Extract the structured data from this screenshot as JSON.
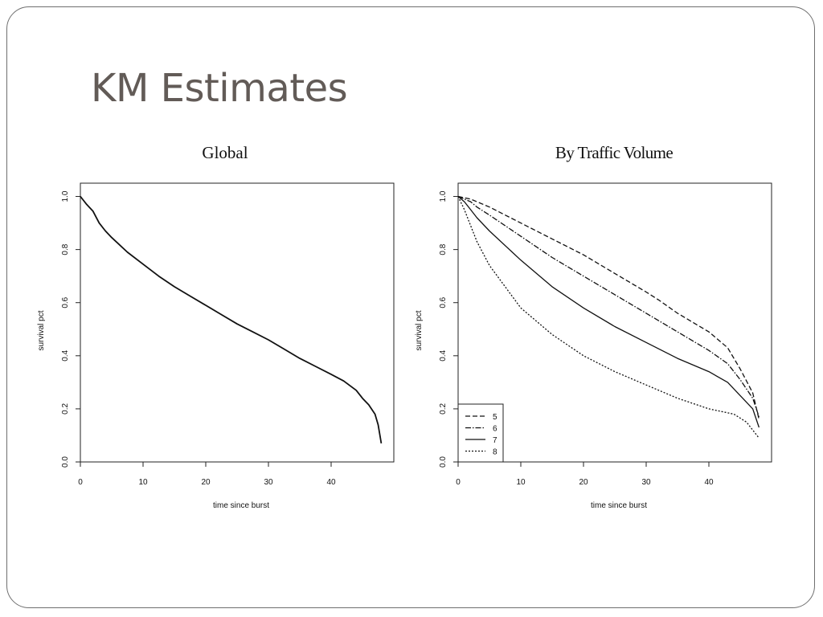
{
  "slide": {
    "title": "KM Estimates",
    "captions": [
      "Global",
      "By Traffic Volume"
    ]
  },
  "chart_data": [
    {
      "type": "line",
      "title": "Global",
      "xlabel": "time since burst",
      "ylabel": "survival pct",
      "xlim": [
        0,
        50
      ],
      "ylim": [
        0,
        1.05
      ],
      "xticks": [
        0,
        10,
        20,
        30,
        40
      ],
      "yticks": [
        0.0,
        0.2,
        0.4,
        0.6,
        0.8,
        1.0
      ],
      "grid": false,
      "series": [
        {
          "x": [
            0,
            1,
            2,
            3,
            4,
            5,
            7.5,
            10,
            12.5,
            15,
            17.5,
            20,
            22.5,
            25,
            27.5,
            30,
            32.5,
            35,
            37.5,
            40,
            42,
            44,
            45,
            46,
            47,
            47.5,
            48
          ],
          "y": [
            1.0,
            0.97,
            0.945,
            0.9,
            0.87,
            0.845,
            0.79,
            0.745,
            0.7,
            0.66,
            0.625,
            0.59,
            0.555,
            0.52,
            0.49,
            0.46,
            0.425,
            0.39,
            0.36,
            0.33,
            0.305,
            0.27,
            0.24,
            0.215,
            0.18,
            0.14,
            0.07
          ],
          "style": "solid"
        }
      ]
    },
    {
      "type": "line",
      "title": "By Traffic Volume",
      "xlabel": "time since burst",
      "ylabel": "survival pct",
      "xlim": [
        0,
        50
      ],
      "ylim": [
        0,
        1.05
      ],
      "xticks": [
        0,
        10,
        20,
        30,
        40
      ],
      "yticks": [
        0.0,
        0.2,
        0.4,
        0.6,
        0.8,
        1.0
      ],
      "grid": false,
      "legend_position": "bottom-left",
      "series": [
        {
          "name": "5",
          "style": "dashed",
          "x": [
            0,
            1,
            2,
            3,
            5,
            10,
            15,
            20,
            25,
            30,
            32,
            35,
            40,
            43,
            45,
            47,
            48
          ],
          "y": [
            1.0,
            0.995,
            0.99,
            0.98,
            0.96,
            0.9,
            0.84,
            0.78,
            0.71,
            0.64,
            0.61,
            0.56,
            0.49,
            0.43,
            0.35,
            0.26,
            0.16
          ]
        },
        {
          "name": "6",
          "style": "dashdot",
          "x": [
            0,
            1,
            2,
            3,
            5,
            10,
            15,
            20,
            25,
            30,
            35,
            40,
            43,
            45,
            47,
            48
          ],
          "y": [
            1.0,
            0.99,
            0.98,
            0.96,
            0.93,
            0.85,
            0.77,
            0.7,
            0.63,
            0.56,
            0.49,
            0.42,
            0.37,
            0.31,
            0.24,
            0.17
          ]
        },
        {
          "name": "7",
          "style": "solid",
          "x": [
            0,
            1,
            2,
            3,
            5,
            10,
            15,
            20,
            25,
            30,
            35,
            40,
            43,
            45,
            47,
            48
          ],
          "y": [
            1.0,
            0.98,
            0.95,
            0.92,
            0.87,
            0.76,
            0.66,
            0.58,
            0.51,
            0.45,
            0.39,
            0.34,
            0.3,
            0.25,
            0.2,
            0.13
          ]
        },
        {
          "name": "8",
          "style": "dotted",
          "x": [
            0,
            1,
            2,
            3,
            5,
            10,
            15,
            20,
            25,
            30,
            35,
            40,
            44,
            46,
            47,
            48
          ],
          "y": [
            1.0,
            0.95,
            0.89,
            0.83,
            0.74,
            0.58,
            0.48,
            0.4,
            0.34,
            0.29,
            0.24,
            0.2,
            0.18,
            0.15,
            0.12,
            0.09
          ]
        }
      ]
    }
  ]
}
